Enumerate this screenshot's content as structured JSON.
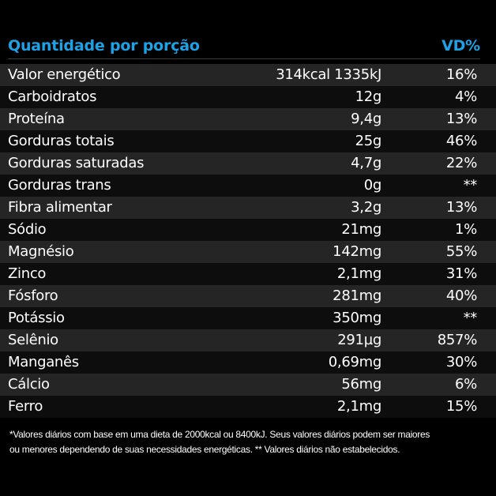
{
  "header": {
    "title": "Quantidade por porção",
    "vd_label": "VD%"
  },
  "rows": [
    {
      "name": "Valor energético",
      "qty": "314kcal 1335kJ",
      "vd": "16%"
    },
    {
      "name": "Carboidratos",
      "qty": "12g",
      "vd": "4%"
    },
    {
      "name": "Proteína",
      "qty": "9,4g",
      "vd": "13%"
    },
    {
      "name": "Gorduras totais",
      "qty": "25g",
      "vd": "46%"
    },
    {
      "name": "Gorduras saturadas",
      "qty": "4,7g",
      "vd": "22%"
    },
    {
      "name": "Gorduras trans",
      "qty": "0g",
      "vd": "**"
    },
    {
      "name": "Fibra alimentar",
      "qty": "3,2g",
      "vd": "13%"
    },
    {
      "name": "Sódio",
      "qty": "21mg",
      "vd": "1%"
    },
    {
      "name": "Magnésio",
      "qty": "142mg",
      "vd": "55%"
    },
    {
      "name": "Zinco",
      "qty": "2,1mg",
      "vd": "31%"
    },
    {
      "name": "Fósforo",
      "qty": "281mg",
      "vd": "40%"
    },
    {
      "name": "Potássio",
      "qty": "350mg",
      "vd": "**"
    },
    {
      "name": "Selênio",
      "qty": "291µg",
      "vd": "857%"
    },
    {
      "name": "Manganês",
      "qty": "0,69mg",
      "vd": "30%"
    },
    {
      "name": "Cálcio",
      "qty": "56mg",
      "vd": "6%"
    },
    {
      "name": "Ferro",
      "qty": "2,1mg",
      "vd": "15%"
    }
  ],
  "footnote": {
    "line1": "*Valores diários com base em uma dieta de 2000kcal ou 8400kJ. Seus valores diários podem ser maiores",
    "line2": "ou menores dependendo de suas necessidades energéticas. ** Valores diários não estabelecidos."
  },
  "colors": {
    "accent": "#1ea2e6",
    "background": "#000000",
    "row_odd": "#252525",
    "row_even": "#0d0d0d",
    "text": "#ffffff"
  }
}
